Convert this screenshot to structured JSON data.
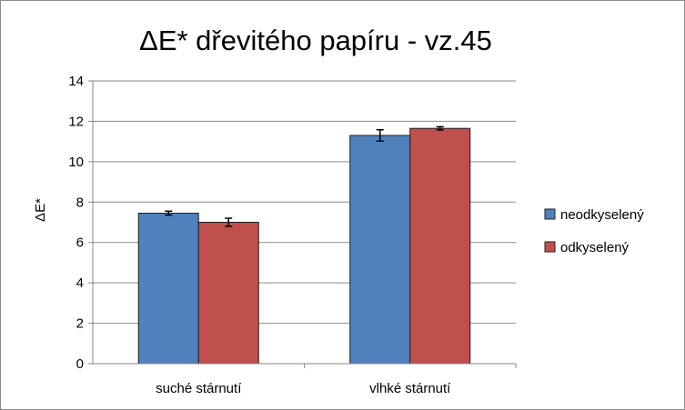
{
  "chart_data": {
    "type": "bar",
    "title": "ΔE* dřevitého papíru - vz.45",
    "xlabel": "",
    "ylabel": "ΔE*",
    "ylim": [
      0,
      14
    ],
    "yticks": [
      0,
      2,
      4,
      6,
      8,
      10,
      12,
      14
    ],
    "grid": true,
    "legend_position": "right",
    "categories": [
      "suché stárnutí",
      "vlhké stárnutí"
    ],
    "series": [
      {
        "name": "neodkyselený",
        "color": "#4f81bd",
        "values": [
          7.45,
          11.3
        ],
        "errors": [
          0.1,
          0.28
        ]
      },
      {
        "name": "odkyselený",
        "color": "#c0504d",
        "values": [
          7.0,
          11.65
        ],
        "errors": [
          0.2,
          0.08
        ]
      }
    ]
  }
}
